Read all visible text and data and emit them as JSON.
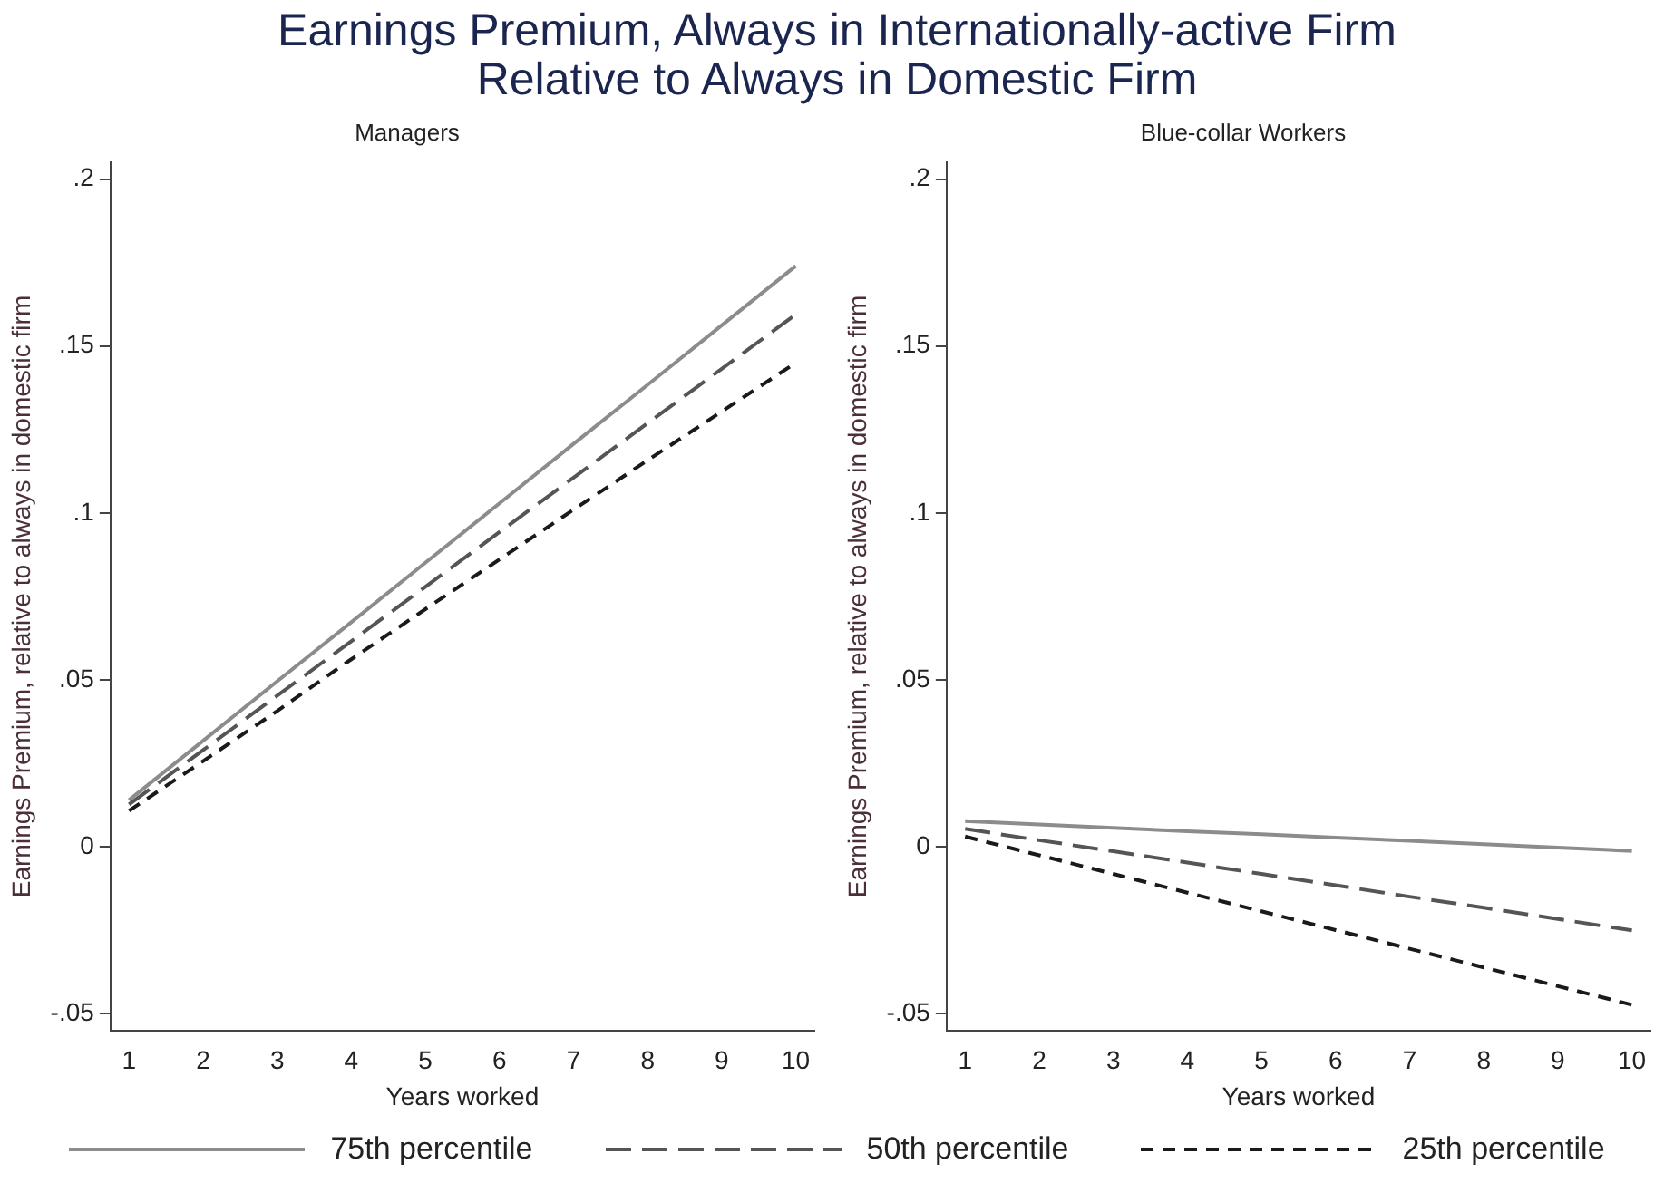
{
  "chart_data": [
    {
      "type": "line",
      "title": "Earnings Premium, Always in Internationally-active Firm\nRelative to Always in Domestic Firm",
      "subtitle": "Managers",
      "xlabel": "Years worked",
      "ylabel": "Earnings Premium, relative to always in domestic firm",
      "xlim": [
        0.75,
        10.25
      ],
      "xticks": [
        1,
        2,
        3,
        4,
        5,
        6,
        7,
        8,
        9,
        10
      ],
      "ylim": [
        -0.055,
        0.205
      ],
      "yticks": [
        {
          "value": -0.05,
          "label": "-.05"
        },
        0,
        {
          "value": 0.05,
          "label": ".05"
        },
        {
          "value": 0.1,
          "label": ".1"
        },
        {
          "value": 0.15,
          "label": ".15"
        },
        {
          "value": 0.2,
          "label": ".2"
        }
      ],
      "grid": false,
      "legend": "bottom",
      "marker": "none",
      "series": [
        {
          "name": "75th percentile",
          "color": "#8c8c8c",
          "line_style": "solid",
          "x": [
            1,
            2,
            3,
            4,
            5,
            6,
            7,
            8,
            9,
            10
          ],
          "values": [
            0.014,
            0.0318,
            0.0496,
            0.0673,
            0.0851,
            0.1029,
            0.1207,
            0.1384,
            0.1562,
            0.174
          ]
        },
        {
          "name": "50th percentile",
          "color": "#555555",
          "line_style": "dashed",
          "x": [
            1,
            2,
            3,
            4,
            5,
            6,
            7,
            8,
            9,
            10
          ],
          "values": [
            0.0127,
            0.029,
            0.0453,
            0.0616,
            0.0779,
            0.0943,
            0.1106,
            0.1269,
            0.1432,
            0.1595
          ]
        },
        {
          "name": "25th percentile",
          "color": "#1a1a1a",
          "line_style": "dashed",
          "x": [
            1,
            2,
            3,
            4,
            5,
            6,
            7,
            8,
            9,
            10
          ],
          "values": [
            0.0108,
            0.0257,
            0.0407,
            0.0562,
            0.0712,
            0.0861,
            0.101,
            0.1158,
            0.1304,
            0.145
          ]
        }
      ]
    },
    {
      "type": "line",
      "subtitle": "Blue-collar Workers",
      "xlabel": "Years worked",
      "ylabel": "Earnings Premium, relative to always in domestic firm",
      "xlim": [
        0.75,
        10.25
      ],
      "xticks": [
        1,
        2,
        3,
        4,
        5,
        6,
        7,
        8,
        9,
        10
      ],
      "ylim": [
        -0.055,
        0.205
      ],
      "yticks": [
        {
          "value": -0.05,
          "label": "-.05"
        },
        0,
        {
          "value": 0.05,
          "label": ".05"
        },
        {
          "value": 0.1,
          "label": ".1"
        },
        {
          "value": 0.15,
          "label": ".15"
        },
        {
          "value": 0.2,
          "label": ".2"
        }
      ],
      "grid": false,
      "marker": "none",
      "series": [
        {
          "color": "#8c8c8c",
          "line_style": "solid",
          "x": [
            1,
            2,
            3,
            4,
            5,
            6,
            7,
            8,
            9,
            10
          ],
          "values": [
            0.0077,
            0.0067,
            0.0057,
            0.0047,
            0.0038,
            0.0028,
            0.0018,
            0.0008,
            -0.0002,
            -0.0012
          ]
        },
        {
          "color": "#555555",
          "line_style": "dashed",
          "x": [
            1,
            2,
            3,
            4,
            5,
            6,
            7,
            8,
            9,
            10
          ],
          "values": [
            0.0054,
            0.002,
            -0.0013,
            -0.0047,
            -0.0081,
            -0.0115,
            -0.0149,
            -0.0182,
            -0.0216,
            -0.025
          ]
        },
        {
          "color": "#1a1a1a",
          "line_style": "dashed",
          "x": [
            1,
            2,
            3,
            4,
            5,
            6,
            7,
            8,
            9,
            10
          ],
          "values": [
            0.0031,
            -0.0025,
            -0.0081,
            -0.0137,
            -0.0193,
            -0.0249,
            -0.0305,
            -0.0361,
            -0.0417,
            -0.0473
          ]
        }
      ]
    }
  ]
}
